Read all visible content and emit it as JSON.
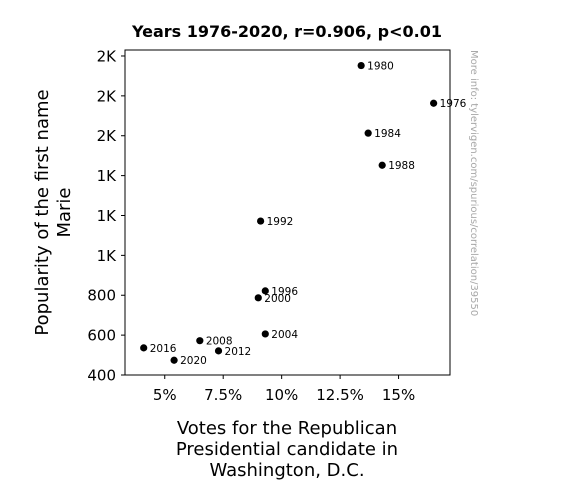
{
  "chart_data": {
    "type": "scatter",
    "title": "Years 1976-2020, r=0.906, p<0.01",
    "xlabel_lines": [
      "Votes for the Republican",
      "Presidential candidate in",
      "Washington, D.C."
    ],
    "ylabel_lines": [
      "Popularity of the first name",
      "Marie"
    ],
    "xlim": [
      3.3,
      17.2
    ],
    "ylim": [
      400,
      2030
    ],
    "x_ticks": [
      {
        "value": 5,
        "label": "5%"
      },
      {
        "value": 7.5,
        "label": "7.5%"
      },
      {
        "value": 10,
        "label": "10%"
      },
      {
        "value": 12.5,
        "label": "12.5%"
      },
      {
        "value": 15,
        "label": "15%"
      }
    ],
    "y_ticks": [
      {
        "value": 400,
        "label": "400"
      },
      {
        "value": 600,
        "label": "600"
      },
      {
        "value": 800,
        "label": "800"
      },
      {
        "value": 1000,
        "label": "1K"
      },
      {
        "value": 1200,
        "label": "1K"
      },
      {
        "value": 1400,
        "label": "1K"
      },
      {
        "value": 1600,
        "label": "2K"
      },
      {
        "value": 1800,
        "label": "2K"
      },
      {
        "value": 2000,
        "label": "2K"
      }
    ],
    "points": [
      {
        "label": "1976",
        "x": 16.5,
        "y": 1763
      },
      {
        "label": "1980",
        "x": 13.4,
        "y": 1952
      },
      {
        "label": "1984",
        "x": 13.7,
        "y": 1613
      },
      {
        "label": "1988",
        "x": 14.3,
        "y": 1452
      },
      {
        "label": "1992",
        "x": 9.1,
        "y": 1172
      },
      {
        "label": "1996",
        "x": 9.3,
        "y": 822
      },
      {
        "label": "2000",
        "x": 9.0,
        "y": 787
      },
      {
        "label": "2004",
        "x": 9.3,
        "y": 606
      },
      {
        "label": "2008",
        "x": 6.5,
        "y": 572
      },
      {
        "label": "2012",
        "x": 7.3,
        "y": 521
      },
      {
        "label": "2016",
        "x": 4.1,
        "y": 536
      },
      {
        "label": "2020",
        "x": 5.4,
        "y": 474
      }
    ],
    "watermark": "More info: tylervigen.com/spurious/correlation/39550"
  }
}
